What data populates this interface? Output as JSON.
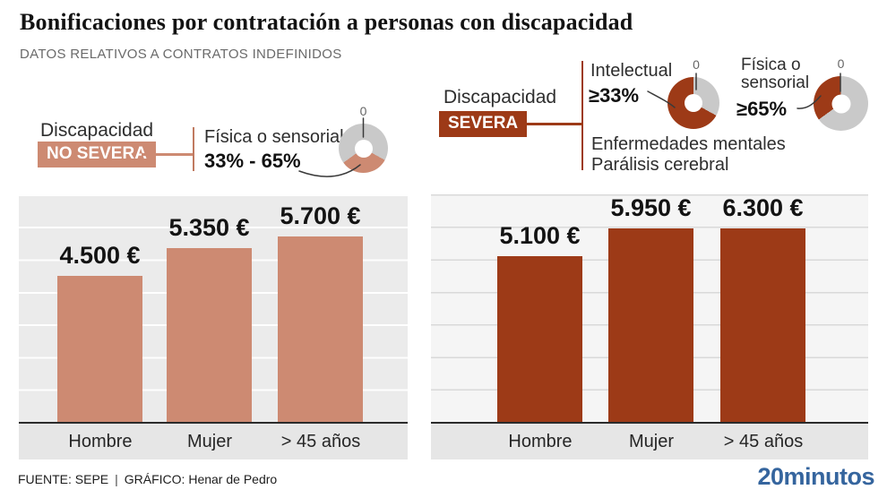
{
  "title": "Bonificaciones por contratación a personas con discapacidad",
  "subtitle": "DATOS RELATIVOS A CONTRATOS INDEFINIDOS",
  "footer": {
    "source": "FUENTE: SEPE",
    "separator": "|",
    "credit": "GRÁFICO: Henar de Pedro",
    "logo": "20minutos"
  },
  "colors": {
    "non_severe": "#cd8a72",
    "severe": "#9d3a17",
    "donut_track": "#c9c9c9",
    "logo_blue": "#35659e"
  },
  "panels": [
    {
      "group_label": "Discapacidad",
      "severity_label": "NO SEVERA",
      "conditions": [
        {
          "name": "Física o sensorial",
          "range": "33% - 65%",
          "donut": {
            "zero_label": "0",
            "start_pct": 33,
            "end_pct": 65,
            "color": "#cd8a72"
          }
        }
      ],
      "notes": [],
      "bars": [
        {
          "category": "Hombre",
          "value": 4500,
          "label": "4.500 €"
        },
        {
          "category": "Mujer",
          "value": 5350,
          "label": "5.350 €"
        },
        {
          "category": "> 45 años",
          "value": 5700,
          "label": "5.700 €"
        }
      ]
    },
    {
      "group_label": "Discapacidad",
      "severity_label": "SEVERA",
      "conditions": [
        {
          "name": "Intelectual",
          "range": "≥33%",
          "donut": {
            "zero_label": "0",
            "start_pct": 33,
            "end_pct": 100,
            "color": "#9d3a17"
          }
        },
        {
          "name_lines": [
            "Física o",
            "sensorial"
          ],
          "range": "≥65%",
          "donut": {
            "zero_label": "0",
            "start_pct": 65,
            "end_pct": 100,
            "color": "#9d3a17"
          }
        }
      ],
      "notes": [
        "Enfermedades mentales",
        "Parálisis cerebral"
      ],
      "bars": [
        {
          "category": "Hombre",
          "value": 5100,
          "label": "5.100 €"
        },
        {
          "category": "Mujer",
          "value": 5950,
          "label": "5.950 €"
        },
        {
          "category": "> 45 años",
          "value": 6300,
          "label": "6.300 €"
        }
      ]
    }
  ],
  "chart_data": [
    {
      "type": "bar",
      "title": "Discapacidad NO SEVERA",
      "subtitle": "Física o sensorial 33% - 65%",
      "categories": [
        "Hombre",
        "Mujer",
        "> 45 años"
      ],
      "values": [
        4500,
        5350,
        5700
      ],
      "unit": "€",
      "ylim": [
        0,
        7000
      ],
      "gridline_interval": 1000,
      "grid": true,
      "bar_color": "#cd8a72",
      "donuts": [
        {
          "label": "Física o sensorial",
          "range_pct": [
            33,
            65
          ],
          "zero_label": "0",
          "color": "#cd8a72"
        }
      ]
    },
    {
      "type": "bar",
      "title": "Discapacidad SEVERA",
      "subtitle": "Intelectual ≥33% · Física o sensorial ≥65% · Enfermedades mentales · Parálisis cerebral",
      "categories": [
        "Hombre",
        "Mujer",
        "> 45 años"
      ],
      "values": [
        5100,
        5950,
        6300
      ],
      "unit": "€",
      "ylim": [
        0,
        7000
      ],
      "gridline_interval": 1000,
      "grid": true,
      "bar_color": "#9d3a17",
      "donuts": [
        {
          "label": "Intelectual",
          "range_pct": [
            33,
            100
          ],
          "zero_label": "0",
          "color": "#9d3a17"
        },
        {
          "label": "Física o sensorial",
          "range_pct": [
            65,
            100
          ],
          "zero_label": "0",
          "color": "#9d3a17"
        }
      ]
    }
  ]
}
